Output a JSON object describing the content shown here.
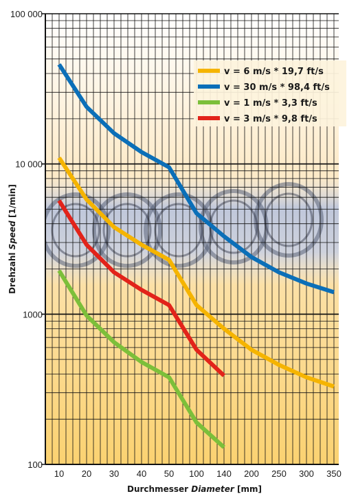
{
  "chart_data": {
    "type": "line",
    "y_scale": "log",
    "ylim": [
      100,
      100000
    ],
    "y_ticks": [
      "100 000",
      "10 000",
      "1000",
      "100"
    ],
    "x_categories": [
      "10",
      "20",
      "30",
      "40",
      "50",
      "100",
      "140",
      "200",
      "250",
      "300",
      "350"
    ],
    "xlabel": {
      "plain": "Durchmesser ",
      "italic": "Diameter",
      "unit": " [mm]"
    },
    "ylabel": {
      "plain": "Drehzahl ",
      "italic": "Speed",
      "unit": " [1/min]"
    },
    "legend_position": "top-right",
    "series": [
      {
        "name": "v =   6 m/s * 19,7 ft/s",
        "color": "#f5b400",
        "x": [
          "10",
          "20",
          "30",
          "40",
          "50",
          "100",
          "140",
          "200",
          "250",
          "300",
          "350"
        ],
        "values": [
          11000,
          5800,
          3800,
          2900,
          2300,
          1150,
          800,
          580,
          460,
          380,
          330
        ]
      },
      {
        "name": "v = 30 m/s * 98,4 ft/s",
        "color": "#0b6fb8",
        "x": [
          "10",
          "20",
          "30",
          "40",
          "50",
          "100",
          "140",
          "200",
          "250",
          "300",
          "350"
        ],
        "values": [
          46000,
          24000,
          16000,
          12000,
          9500,
          4700,
          3300,
          2400,
          1900,
          1600,
          1400
        ]
      },
      {
        "name": "v =   1 m/s  * 3,3 ft/s",
        "color": "#7cbf3a",
        "x": [
          "10",
          "20",
          "30",
          "40",
          "50",
          "100",
          "140"
        ],
        "values": [
          1950,
          980,
          650,
          480,
          380,
          190,
          130
        ]
      },
      {
        "name": "v =   3 m/s  * 9,8 ft/s",
        "color": "#e2231a",
        "x": [
          "10",
          "20",
          "30",
          "40",
          "50",
          "100",
          "140"
        ],
        "values": [
          5700,
          2900,
          1900,
          1450,
          1150,
          580,
          390
        ]
      }
    ]
  },
  "colors": {
    "gradient_top": "#ffffff",
    "gradient_mid": "#fde9c4",
    "gradient_bottom": "#fbd271",
    "grid": "#111111",
    "bearing_band": "#b9c4de"
  }
}
